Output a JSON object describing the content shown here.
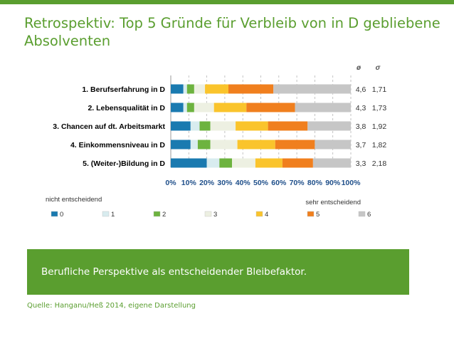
{
  "slide": {
    "title": "Retrospektiv: Top 5 Gründe für Verbleib von in D gebliebene Absolventen",
    "banner_text": "Berufliche Perspektive als entscheidender Bleibefaktor.",
    "source": "Quelle: Hanganu/Heß 2014, eigene Darstellung"
  },
  "chart_data": {
    "type": "bar",
    "orientation": "horizontal",
    "stacked": true,
    "categories": [
      "1.  Berufserfahrung in D",
      "2.  Lebensqualität in D",
      "3.  Chancen auf dt. Arbeitsmarkt",
      "4.  Einkommensniveau in D",
      "5.  (Weiter-)Bildung in D"
    ],
    "series": [
      {
        "name": "0",
        "color": "#1a7ab0",
        "values": [
          7,
          7,
          11,
          11,
          20
        ]
      },
      {
        "name": "1",
        "color": "#d8ecef",
        "values": [
          2,
          2,
          5,
          4,
          7
        ]
      },
      {
        "name": "2",
        "color": "#6db33f",
        "values": [
          4,
          4,
          6,
          7,
          7
        ]
      },
      {
        "name": "3",
        "color": "#edf0e2",
        "values": [
          6,
          11,
          14,
          15,
          13
        ]
      },
      {
        "name": "4",
        "color": "#fac42c",
        "values": [
          13,
          18,
          18,
          21,
          15
        ]
      },
      {
        "name": "5",
        "color": "#f07f1e",
        "values": [
          25,
          27,
          22,
          22,
          17
        ]
      },
      {
        "name": "6",
        "color": "#c6c6c6",
        "values": [
          43,
          31,
          24,
          20,
          21
        ]
      }
    ],
    "x_ticks": [
      "0%",
      "10%",
      "20%",
      "30%",
      "40%",
      "50%",
      "60%",
      "70%",
      "80%",
      "90%",
      "100%"
    ],
    "xlim": [
      0,
      100
    ],
    "stats_headers": [
      "ø",
      "σ"
    ],
    "mean_values": [
      "4,6",
      "4,3",
      "3,8",
      "3,7",
      "3,3"
    ],
    "sd_values": [
      "1,71",
      "1,73",
      "1,92",
      "1,82",
      "2,18"
    ],
    "scale_left_label": "nicht entscheidend",
    "scale_right_label": "sehr entscheidend",
    "legend_position": "bottom",
    "grid": true,
    "grid_style": "dashed vertical",
    "axis_color": "#999999",
    "tick_color": "#1f4f8a",
    "label_color": "#000000"
  }
}
